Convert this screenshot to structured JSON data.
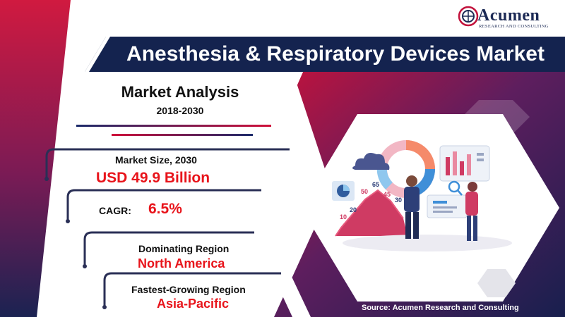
{
  "logo": {
    "name": "Acumen",
    "tagline": "RESEARCH AND CONSULTING"
  },
  "title": "Anesthesia & Respiratory Devices Market",
  "analysis": {
    "heading": "Market Analysis",
    "years": "2018-2030"
  },
  "stats": {
    "market_size_label": "Market Size, 2030",
    "market_size_value": "USD 49.9 Billion",
    "cagr_label": "CAGR:",
    "cagr_value": "6.5%",
    "dominating_label": "Dominating Region",
    "dominating_value": "North America",
    "fastest_label": "Fastest-Growing Region",
    "fastest_value": "Asia-Pacific"
  },
  "illustration": {
    "chart_labels": [
      "65",
      "50",
      "45",
      "30",
      "20",
      "10"
    ]
  },
  "source": "Source: Acumen Research and Consulting",
  "colors": {
    "navy": "#14234f",
    "crimson": "#b0103a",
    "red_value": "#e8141b",
    "purple": "#6a1f60"
  }
}
